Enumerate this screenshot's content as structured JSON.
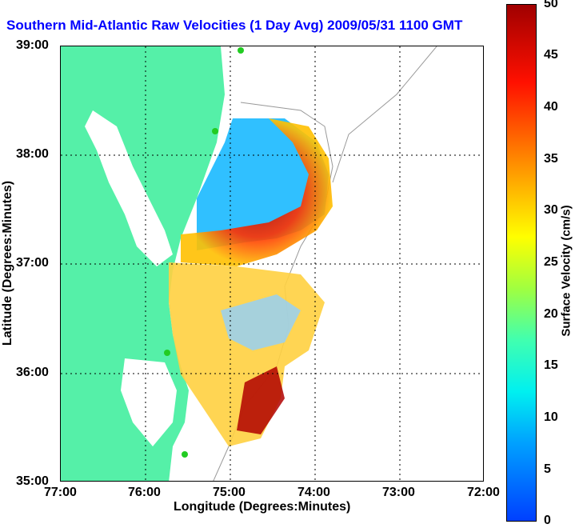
{
  "title": "Southern Mid-Atlantic Raw Velocities (1 Day Avg) 2009/05/31 1100 GMT",
  "axes": {
    "xlabel": "Longitude (Degrees:Minutes)",
    "ylabel": "Latitude (Degrees:Minutes)",
    "xticks": [
      "77:00",
      "76:00",
      "75:00",
      "74:00",
      "73:00",
      "72:00"
    ],
    "yticks": [
      "39:00",
      "38:00",
      "37:00",
      "36:00",
      "35:00"
    ]
  },
  "colorbar": {
    "label": "Surface Velocity (cm/s)",
    "ticks": [
      "50",
      "45",
      "40",
      "35",
      "30",
      "25",
      "20",
      "15",
      "10",
      "5",
      "0"
    ]
  },
  "colors": {
    "land": "#55f0a8",
    "title": "#0000ff",
    "station": "#22cc22"
  }
}
